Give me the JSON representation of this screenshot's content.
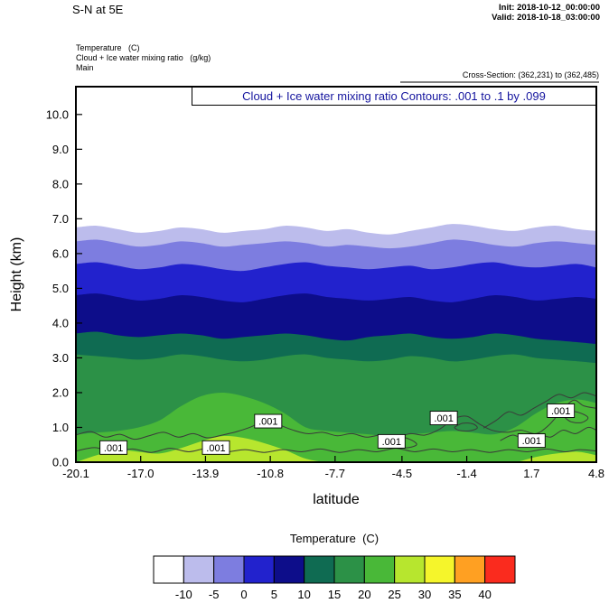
{
  "header": {
    "title": "S-N at 5E",
    "init_label": "Init: 2018-10-12_00:00:00",
    "valid_label": "Valid: 2018-10-18_03:00:00",
    "field1": "Temperature   (C)",
    "field2": "Cloud + Ice water mixing ratio   (g/kg)",
    "field3": "Main",
    "cross_section": "Cross-Section: (362,231) to (362,485)"
  },
  "chart_data": {
    "type": "area",
    "subtype": "filled-contour-vertical-cross-section",
    "title": "Cloud + Ice water mixing ratio Contours: .001 to .1 by .099",
    "xlabel": "latitude",
    "ylabel": "Height (km)",
    "x_range": [
      -20.1,
      4.8
    ],
    "y_range": [
      0,
      10.8
    ],
    "x_tick_labels": [
      "-20.1",
      "-17.0",
      "-13.9",
      "-10.8",
      "-7.7",
      "-4.5",
      "-1.4",
      "1.7",
      "4.8"
    ],
    "y_tick_labels": [
      "0.0",
      "1.0",
      "2.0",
      "3.0",
      "4.0",
      "5.0",
      "6.0",
      "7.0",
      "8.0",
      "9.0",
      "10.0"
    ],
    "grid": false,
    "temperature": {
      "unit": "C",
      "background_color": "#ffffff",
      "x": [
        -20.1,
        -19.1,
        -18.1,
        -17.1,
        -16.1,
        -15.1,
        -14.1,
        -13.1,
        -12.1,
        -11.1,
        -10.1,
        -9.1,
        -8.1,
        -7.1,
        -6.1,
        -5.1,
        -4.1,
        -3.1,
        -2.1,
        -1.1,
        -0.1,
        0.9,
        1.9,
        2.9,
        3.9,
        4.8
      ],
      "isotherm_bands": [
        {
          "temp_above_c": -10,
          "fill_below": "#bcbcec",
          "heights_km": [
            6.75,
            6.8,
            6.7,
            6.6,
            6.65,
            6.75,
            6.7,
            6.6,
            6.65,
            6.7,
            6.8,
            6.75,
            6.65,
            6.7,
            6.6,
            6.55,
            6.65,
            6.75,
            6.85,
            6.8,
            6.7,
            6.65,
            6.75,
            6.8,
            6.7,
            6.65
          ]
        },
        {
          "temp_above_c": -5,
          "fill_below": "#7d7de0",
          "heights_km": [
            6.35,
            6.4,
            6.3,
            6.2,
            6.25,
            6.35,
            6.3,
            6.2,
            6.25,
            6.3,
            6.35,
            6.3,
            6.2,
            6.25,
            6.2,
            6.15,
            6.2,
            6.3,
            6.4,
            6.35,
            6.25,
            6.2,
            6.3,
            6.35,
            6.3,
            6.25
          ]
        },
        {
          "temp_above_c": 0,
          "fill_below": "#2222cd",
          "heights_km": [
            5.7,
            5.75,
            5.65,
            5.55,
            5.6,
            5.7,
            5.65,
            5.55,
            5.5,
            5.6,
            5.7,
            5.75,
            5.65,
            5.6,
            5.55,
            5.6,
            5.65,
            5.55,
            5.6,
            5.7,
            5.75,
            5.65,
            5.6,
            5.65,
            5.7,
            5.6
          ]
        },
        {
          "temp_above_c": 5,
          "fill_below": "#0d0d8a",
          "heights_km": [
            4.8,
            4.85,
            4.75,
            4.65,
            4.7,
            4.8,
            4.75,
            4.65,
            4.6,
            4.7,
            4.8,
            4.85,
            4.75,
            4.7,
            4.65,
            4.7,
            4.75,
            4.65,
            4.6,
            4.7,
            4.8,
            4.75,
            4.65,
            4.7,
            4.75,
            4.7
          ]
        },
        {
          "temp_above_c": 10,
          "fill_below": "#0f6b52",
          "heights_km": [
            3.7,
            3.75,
            3.65,
            3.6,
            3.65,
            3.7,
            3.65,
            3.55,
            3.6,
            3.65,
            3.7,
            3.65,
            3.55,
            3.5,
            3.6,
            3.65,
            3.7,
            3.6,
            3.55,
            3.6,
            3.7,
            3.65,
            3.55,
            3.5,
            3.45,
            3.4
          ]
        },
        {
          "temp_above_c": 15,
          "fill_below": "#2c9147",
          "heights_km": [
            3.1,
            3.05,
            3.0,
            2.95,
            3.0,
            3.1,
            3.05,
            2.95,
            2.9,
            2.95,
            3.05,
            3.1,
            3.0,
            2.95,
            2.9,
            2.95,
            3.05,
            3.0,
            2.9,
            2.95,
            3.05,
            3.1,
            3.0,
            2.95,
            2.9,
            2.85
          ]
        },
        {
          "temp_above_c": 20,
          "fill_below": "#49b838",
          "heights_km": [
            0.8,
            0.85,
            0.9,
            1.0,
            1.2,
            1.6,
            1.9,
            2.0,
            1.9,
            1.7,
            1.4,
            1.0,
            0.9,
            0.85,
            0.8,
            0.75,
            0.8,
            0.85,
            0.9,
            0.85,
            0.8,
            1.0,
            1.4,
            1.7,
            1.8,
            1.7
          ]
        },
        {
          "temp_above_c": 25,
          "fill_below": "#b7e62e",
          "heights_km": [
            0.0,
            0.2,
            0.35,
            0.3,
            0.25,
            0.4,
            0.6,
            0.75,
            0.7,
            0.55,
            0.35,
            0.1,
            0.0,
            0.0,
            0.0,
            0.0,
            0.0,
            0.0,
            0.0,
            0.0,
            0.0,
            0.0,
            0.15,
            0.25,
            0.3,
            0.2
          ]
        }
      ]
    },
    "cloud_mixing_ratio": {
      "unit": "g/kg",
      "contour_levels": [
        0.001,
        0.1
      ],
      "contour_color": "#3a3a3a",
      "label": ".001",
      "labels": [
        {
          "lat": -18.3,
          "km": 0.42
        },
        {
          "lat": -13.4,
          "km": 0.42
        },
        {
          "lat": -10.9,
          "km": 1.18
        },
        {
          "lat": -5.0,
          "km": 0.6
        },
        {
          "lat": -2.5,
          "km": 1.27
        },
        {
          "lat": 1.7,
          "km": 0.62
        },
        {
          "lat": 3.1,
          "km": 1.48
        }
      ],
      "polylines": [
        [
          [
            -20.1,
            0.78
          ],
          [
            -19.4,
            0.88
          ],
          [
            -18.7,
            0.72
          ],
          [
            -18.0,
            0.8
          ],
          [
            -17.3,
            0.66
          ],
          [
            -16.6,
            0.76
          ],
          [
            -15.9,
            0.86
          ],
          [
            -15.2,
            0.72
          ],
          [
            -14.5,
            0.82
          ],
          [
            -13.8,
            0.7
          ],
          [
            -13.1,
            0.78
          ],
          [
            -12.4,
            0.88
          ],
          [
            -11.7,
            1.02
          ],
          [
            -11.0,
            1.22
          ],
          [
            -10.4,
            1.08
          ],
          [
            -9.7,
            0.92
          ],
          [
            -9.0,
            0.82
          ],
          [
            -8.3,
            0.86
          ],
          [
            -7.6,
            0.76
          ],
          [
            -6.9,
            0.82
          ],
          [
            -6.2,
            0.72
          ],
          [
            -5.5,
            0.78
          ],
          [
            -4.8,
            0.7
          ],
          [
            -4.1,
            0.82
          ],
          [
            -3.4,
            0.78
          ],
          [
            -2.7,
            0.95
          ],
          [
            -2.0,
            1.25
          ],
          [
            -1.4,
            1.32
          ],
          [
            -0.8,
            1.1
          ],
          [
            -0.2,
            0.92
          ],
          [
            0.5,
            0.86
          ],
          [
            1.2,
            0.92
          ],
          [
            1.9,
            0.82
          ],
          [
            2.5,
            1.05
          ],
          [
            3.1,
            1.45
          ],
          [
            3.7,
            1.78
          ],
          [
            4.2,
            1.62
          ],
          [
            4.8,
            1.55
          ]
        ],
        [
          [
            -20.1,
            0.32
          ],
          [
            -19.2,
            0.42
          ],
          [
            -18.3,
            0.3
          ],
          [
            -17.4,
            0.38
          ],
          [
            -16.5,
            0.28
          ],
          [
            -15.6,
            0.4
          ],
          [
            -14.7,
            0.3
          ],
          [
            -13.8,
            0.4
          ],
          [
            -12.9,
            0.3
          ],
          [
            -12.0,
            0.36
          ],
          [
            -11.1,
            0.28
          ],
          [
            -10.2,
            0.36
          ],
          [
            -9.3,
            0.3
          ],
          [
            -8.4,
            0.38
          ],
          [
            -7.5,
            0.28
          ],
          [
            -6.6,
            0.36
          ],
          [
            -5.7,
            0.3
          ],
          [
            -4.8,
            0.4
          ],
          [
            -3.9,
            0.3
          ],
          [
            -3.0,
            0.38
          ],
          [
            -2.1,
            0.3
          ],
          [
            -1.2,
            0.36
          ],
          [
            -0.3,
            0.28
          ],
          [
            0.6,
            0.36
          ],
          [
            1.5,
            0.3
          ],
          [
            2.4,
            0.38
          ],
          [
            3.3,
            0.3
          ],
          [
            4.0,
            0.36
          ],
          [
            4.8,
            0.32
          ]
        ],
        [
          [
            -0.6,
            0.98
          ],
          [
            0.0,
            1.2
          ],
          [
            0.6,
            1.45
          ],
          [
            1.2,
            1.35
          ],
          [
            1.8,
            1.55
          ],
          [
            2.4,
            1.75
          ],
          [
            3.0,
            1.95
          ],
          [
            3.6,
            1.85
          ],
          [
            4.2,
            2.0
          ],
          [
            4.8,
            1.9
          ]
        ],
        [
          [
            -5.4,
            0.52
          ],
          [
            -5.0,
            0.66
          ],
          [
            -4.5,
            0.72
          ],
          [
            -4.0,
            0.62
          ],
          [
            -3.8,
            0.5
          ],
          [
            -4.2,
            0.42
          ],
          [
            -4.8,
            0.42
          ],
          [
            -5.4,
            0.52
          ]
        ],
        [
          [
            3.3,
            1.28
          ],
          [
            3.6,
            1.45
          ],
          [
            4.0,
            1.42
          ],
          [
            4.4,
            1.28
          ],
          [
            4.1,
            1.14
          ],
          [
            3.6,
            1.16
          ],
          [
            3.3,
            1.28
          ]
        ],
        [
          [
            0.2,
            0.62
          ],
          [
            0.8,
            0.78
          ],
          [
            1.4,
            0.66
          ],
          [
            2.0,
            0.82
          ],
          [
            2.6,
            0.72
          ],
          [
            3.2,
            0.92
          ],
          [
            3.8,
            0.82
          ],
          [
            4.4,
            1.0
          ],
          [
            4.8,
            0.92
          ]
        ],
        [
          [
            -2.0,
            1.0
          ],
          [
            -1.6,
            1.12
          ],
          [
            -1.1,
            1.1
          ],
          [
            -0.9,
            0.98
          ],
          [
            -1.3,
            0.9
          ],
          [
            -1.8,
            0.92
          ],
          [
            -2.0,
            1.0
          ]
        ]
      ]
    },
    "colorbar": {
      "title": "Temperature  (C)",
      "labels": [
        "-10",
        "-5",
        "0",
        "5",
        "10",
        "15",
        "20",
        "25",
        "30",
        "35",
        "40"
      ],
      "colors": [
        "#ffffff",
        "#bcbcec",
        "#7d7de0",
        "#2222cd",
        "#0d0d8a",
        "#0f6b52",
        "#2c9147",
        "#49b838",
        "#b7e62e",
        "#f5f52b",
        "#ffa022",
        "#fa2b1e"
      ]
    }
  }
}
